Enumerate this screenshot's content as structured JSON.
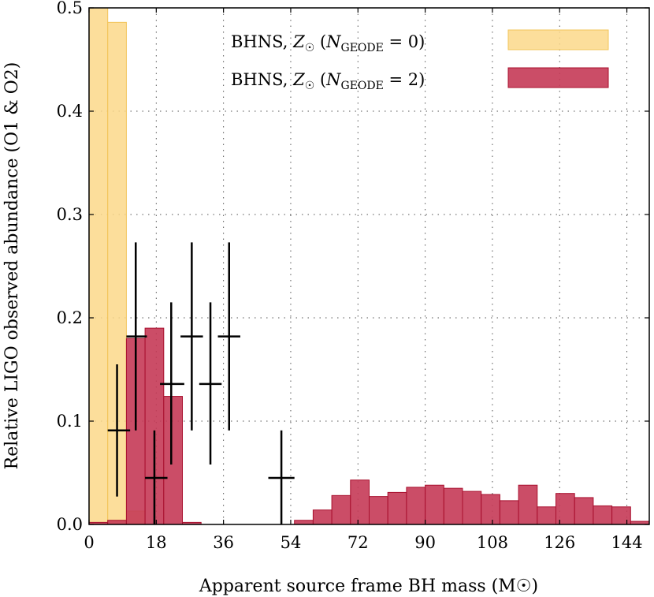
{
  "chart_data": {
    "type": "bar",
    "xlabel": "Apparent source frame BH mass (M☉)",
    "ylabel": "Relative LIGO observed abundance (O1 & O2)",
    "xlim": [
      0,
      150
    ],
    "ylim": [
      0,
      0.5
    ],
    "xticks": [
      0,
      18,
      36,
      54,
      72,
      90,
      108,
      126,
      144
    ],
    "yticks": [
      0.0,
      0.1,
      0.2,
      0.3,
      0.4,
      0.5
    ],
    "ytick_labels": [
      "0.0",
      "0.1",
      "0.2",
      "0.3",
      "0.4",
      "0.5"
    ],
    "grid": true,
    "legend_position": "top-right",
    "series": [
      {
        "name": "BHNS, Z☉ (N_GEODE = 0)",
        "legend_parts": [
          "BHNS, ",
          "Z",
          "☉",
          " (",
          "N",
          "GEODE",
          " = 0)"
        ],
        "kind": "histogram",
        "color": "#FBD88A",
        "edge": "#F2C45A",
        "opacity": 0.85,
        "bins": [
          {
            "x0": 0,
            "x1": 5,
            "value": 0.5
          },
          {
            "x0": 5,
            "x1": 10,
            "value": 0.486
          },
          {
            "x0": 10,
            "x1": 15,
            "value": 0.013
          }
        ]
      },
      {
        "name": "BHNS, Z☉ (N_GEODE = 2)",
        "legend_parts": [
          "BHNS, ",
          "Z",
          "☉",
          " (",
          "N",
          "GEODE",
          " = 2)"
        ],
        "kind": "histogram",
        "color": "#C53A57",
        "edge": "#A8102E",
        "opacity": 0.9,
        "bins": [
          {
            "x0": 0,
            "x1": 5,
            "value": 0.002
          },
          {
            "x0": 5,
            "x1": 10,
            "value": 0.004
          },
          {
            "x0": 10,
            "x1": 15,
            "value": 0.18
          },
          {
            "x0": 15,
            "x1": 20,
            "value": 0.19
          },
          {
            "x0": 20,
            "x1": 25,
            "value": 0.124
          },
          {
            "x0": 25,
            "x1": 30,
            "value": 0.002
          },
          {
            "x0": 30,
            "x1": 35,
            "value": 0.0
          },
          {
            "x0": 35,
            "x1": 40,
            "value": 0.0
          },
          {
            "x0": 40,
            "x1": 45,
            "value": 0.0
          },
          {
            "x0": 45,
            "x1": 50,
            "value": 0.0
          },
          {
            "x0": 50,
            "x1": 55,
            "value": 0.0
          },
          {
            "x0": 55,
            "x1": 60,
            "value": 0.004
          },
          {
            "x0": 60,
            "x1": 65,
            "value": 0.014
          },
          {
            "x0": 65,
            "x1": 70,
            "value": 0.028
          },
          {
            "x0": 70,
            "x1": 75,
            "value": 0.043
          },
          {
            "x0": 75,
            "x1": 80,
            "value": 0.027
          },
          {
            "x0": 80,
            "x1": 85,
            "value": 0.031
          },
          {
            "x0": 85,
            "x1": 90,
            "value": 0.036
          },
          {
            "x0": 90,
            "x1": 95,
            "value": 0.038
          },
          {
            "x0": 95,
            "x1": 100,
            "value": 0.035
          },
          {
            "x0": 100,
            "x1": 105,
            "value": 0.032
          },
          {
            "x0": 105,
            "x1": 110,
            "value": 0.029
          },
          {
            "x0": 110,
            "x1": 115,
            "value": 0.023
          },
          {
            "x0": 115,
            "x1": 120,
            "value": 0.038
          },
          {
            "x0": 120,
            "x1": 125,
            "value": 0.017
          },
          {
            "x0": 125,
            "x1": 130,
            "value": 0.03
          },
          {
            "x0": 130,
            "x1": 135,
            "value": 0.026
          },
          {
            "x0": 135,
            "x1": 140,
            "value": 0.018
          },
          {
            "x0": 140,
            "x1": 145,
            "value": 0.017
          },
          {
            "x0": 145,
            "x1": 150,
            "value": 0.003
          }
        ]
      },
      {
        "kind": "errorbar",
        "color": "#000000",
        "points": [
          {
            "x": 7.5,
            "y": 0.091,
            "x_lo": 5,
            "x_hi": 11,
            "y_lo": 0.027,
            "y_hi": 0.155
          },
          {
            "x": 12.5,
            "y": 0.182,
            "x_lo": 10,
            "x_hi": 15.5,
            "y_lo": 0.091,
            "y_hi": 0.273
          },
          {
            "x": 17.5,
            "y": 0.045,
            "x_lo": 15,
            "x_hi": 21,
            "y_lo": 0.0,
            "y_hi": 0.091
          },
          {
            "x": 22.0,
            "y": 0.136,
            "x_lo": 19,
            "x_hi": 25.5,
            "y_lo": 0.058,
            "y_hi": 0.215
          },
          {
            "x": 27.5,
            "y": 0.182,
            "x_lo": 24.5,
            "x_hi": 30.5,
            "y_lo": 0.091,
            "y_hi": 0.273
          },
          {
            "x": 32.5,
            "y": 0.136,
            "x_lo": 29.5,
            "x_hi": 35.5,
            "y_lo": 0.058,
            "y_hi": 0.215
          },
          {
            "x": 37.5,
            "y": 0.182,
            "x_lo": 34.5,
            "x_hi": 40.5,
            "y_lo": 0.091,
            "y_hi": 0.273
          },
          {
            "x": 51.5,
            "y": 0.045,
            "x_lo": 48,
            "x_hi": 55,
            "y_lo": 0.0,
            "y_hi": 0.091
          }
        ]
      }
    ]
  }
}
